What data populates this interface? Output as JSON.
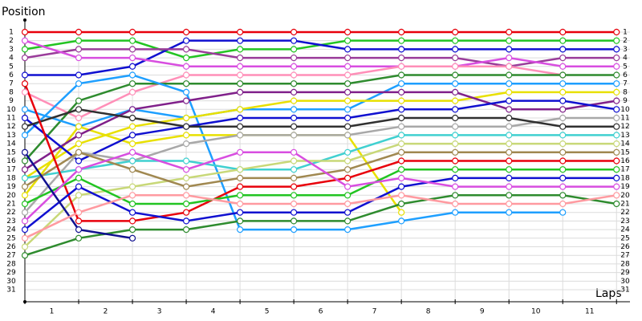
{
  "chart_data": {
    "type": "line",
    "title": "Position",
    "x_label": "Laps",
    "x": [
      0,
      1,
      2,
      3,
      4,
      5,
      6,
      7,
      8,
      9,
      10,
      11
    ],
    "xlim": [
      0,
      11.25
    ],
    "xticks": [
      {
        "value": 0.5,
        "label": "1"
      },
      {
        "value": 1.5,
        "label": "2"
      },
      {
        "value": 2.5,
        "label": "3"
      },
      {
        "value": 3.5,
        "label": "4"
      },
      {
        "value": 4.5,
        "label": "5"
      },
      {
        "value": 5.5,
        "label": "6"
      },
      {
        "value": 6.5,
        "label": "7"
      },
      {
        "value": 7.5,
        "label": "8"
      },
      {
        "value": 8.5,
        "label": "9"
      },
      {
        "value": 9.5,
        "label": "10"
      },
      {
        "value": 10.5,
        "label": "11"
      }
    ],
    "ylim": [
      -0.4,
      32.4
    ],
    "y_inverted": true,
    "yticks": [
      1,
      2,
      3,
      4,
      5,
      6,
      7,
      8,
      9,
      10,
      11,
      12,
      13,
      14,
      15,
      16,
      17,
      18,
      19,
      20,
      21,
      22,
      23,
      24,
      25,
      26,
      27,
      28,
      29,
      30,
      31
    ],
    "grid": true,
    "series": [
      {
        "color": "#e8000b",
        "values": [
          1,
          1,
          1,
          1,
          1,
          1,
          1,
          1,
          1,
          1,
          1,
          1
        ]
      },
      {
        "color": "#22c422",
        "values": [
          3,
          2,
          2,
          4,
          3,
          3,
          2,
          2,
          2,
          2,
          2,
          2
        ]
      },
      {
        "color": "#1010d0",
        "values": [
          6,
          6,
          5,
          2,
          2,
          2,
          3,
          3,
          3,
          3,
          3,
          3
        ]
      },
      {
        "color": "#9a3c9a",
        "values": [
          4,
          3,
          3,
          3,
          4,
          4,
          4,
          4,
          4,
          5,
          4,
          4
        ]
      },
      {
        "color": "#d84ee0",
        "values": [
          2,
          4,
          4,
          5,
          5,
          5,
          5,
          5,
          5,
          4,
          5,
          5
        ]
      },
      {
        "color": "#ff8fb8",
        "values": [
          8,
          11,
          8,
          6,
          6,
          6,
          6,
          5,
          5,
          5,
          6,
          null
        ]
      },
      {
        "color": "#2e8b2e",
        "values": [
          16,
          9,
          7,
          7,
          7,
          7,
          7,
          6,
          6,
          6,
          6,
          6
        ]
      },
      {
        "color": "#1e9fff",
        "values": [
          13,
          7,
          6,
          8,
          24,
          24,
          24,
          23,
          22,
          22,
          22,
          null
        ]
      },
      {
        "color": "#1e9fff",
        "values": [
          10,
          12,
          10,
          11,
          10,
          10,
          10,
          7,
          7,
          7,
          7,
          7
        ]
      },
      {
        "color": "#e8e000",
        "values": [
          20,
          12,
          14,
          13,
          13,
          13,
          13,
          22,
          null,
          null,
          null,
          null
        ]
      },
      {
        "color": "#e8e000",
        "values": [
          18,
          14,
          12,
          11,
          10,
          9,
          9,
          9,
          9,
          8,
          8,
          8
        ]
      },
      {
        "color": "#80208a",
        "values": [
          17,
          13,
          10,
          9,
          8,
          8,
          8,
          8,
          8,
          10,
          10,
          9
        ]
      },
      {
        "color": "#1010d0",
        "values": [
          11,
          16,
          13,
          12,
          11,
          11,
          11,
          10,
          10,
          9,
          9,
          10
        ]
      },
      {
        "color": "#a8a8a8",
        "values": [
          22,
          15,
          16,
          14,
          13,
          13,
          13,
          12,
          12,
          12,
          11,
          11
        ]
      },
      {
        "color": "#303030",
        "values": [
          12,
          10,
          11,
          12,
          12,
          12,
          12,
          11,
          11,
          11,
          12,
          12
        ]
      },
      {
        "color": "#40d0d0",
        "values": [
          18,
          17,
          16,
          16,
          17,
          17,
          15,
          13,
          13,
          13,
          13,
          13
        ]
      },
      {
        "color": "#c8d878",
        "values": [
          26,
          20,
          19,
          18,
          17,
          16,
          16,
          14,
          14,
          14,
          14,
          14
        ]
      },
      {
        "color": "#a08850",
        "values": [
          19,
          15,
          17,
          19,
          18,
          18,
          17,
          15,
          15,
          15,
          15,
          15
        ]
      },
      {
        "color": "#e8000b",
        "values": [
          7,
          23,
          23,
          22,
          19,
          19,
          18,
          16,
          16,
          16,
          16,
          16
        ]
      },
      {
        "color": "#22c422",
        "values": [
          21,
          18,
          21,
          21,
          20,
          20,
          20,
          17,
          17,
          17,
          17,
          17
        ]
      },
      {
        "color": "#1010d0",
        "values": [
          24,
          19,
          22,
          23,
          22,
          22,
          22,
          19,
          18,
          18,
          18,
          18
        ]
      },
      {
        "color": "#d84ee0",
        "values": [
          23,
          17,
          15,
          17,
          15,
          15,
          19,
          18,
          19,
          19,
          19,
          19
        ]
      },
      {
        "color": "#2e8b2e",
        "values": [
          27,
          25,
          24,
          24,
          23,
          23,
          23,
          21,
          20,
          20,
          20,
          21
        ]
      },
      {
        "color": "#101090",
        "values": [
          15,
          24,
          25,
          null,
          null,
          null,
          null,
          null,
          null,
          null,
          null,
          null
        ]
      },
      {
        "color": "#ff9aa0",
        "values": [
          25,
          22,
          20,
          20,
          21,
          21,
          21,
          20,
          21,
          21,
          21,
          20
        ]
      }
    ]
  }
}
